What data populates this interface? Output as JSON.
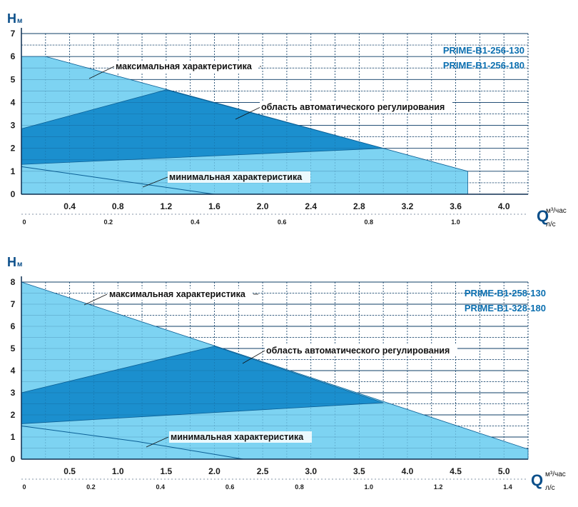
{
  "charts": [
    {
      "y_axis_label": "H",
      "y_axis_unit": "м",
      "x_axis_label": "Q",
      "x_unit_primary": "м³/час",
      "x_unit_secondary": "л/с",
      "models": [
        "PRIME-B1-256-130",
        "PRIME-B1-256-180"
      ],
      "annotations": {
        "max": "максимальная характеристика",
        "auto": "область автоматического регулирования",
        "min": "минимальная характеристика"
      },
      "y_ticks": [
        "0",
        "1",
        "2",
        "3",
        "4",
        "5",
        "6",
        "7"
      ],
      "x_ticks": [
        "0.4",
        "0.8",
        "1.2",
        "1.6",
        "2.0",
        "2.4",
        "2.8",
        "3.2",
        "3.6",
        "4.0"
      ],
      "x_ticks_secondary": [
        "0",
        "0.2",
        "0.4",
        "0.6",
        "0.8",
        "1.0"
      ],
      "colors": {
        "light": "#7dd3f2",
        "dark": "#1b8fce",
        "line": "#0b5f95",
        "grid": "#0d3d66"
      }
    },
    {
      "y_axis_label": "H",
      "y_axis_unit": "м",
      "x_axis_label": "Q",
      "x_unit_primary": "м³/час",
      "x_unit_secondary": "л/с",
      "models": [
        "PRIME-B1-258-130",
        "PRIME-B1-328-180"
      ],
      "annotations": {
        "max": "максимальная характеристика",
        "auto": "область автоматического регулирования",
        "min": "минимальная характеристика"
      },
      "y_ticks": [
        "0",
        "1",
        "2",
        "3",
        "4",
        "5",
        "6",
        "7",
        "8"
      ],
      "x_ticks": [
        "0.5",
        "1.0",
        "1.5",
        "2.0",
        "2.5",
        "3.0",
        "3.5",
        "4.0",
        "4.5",
        "5.0"
      ],
      "x_ticks_secondary": [
        "0",
        "0.2",
        "0.4",
        "0.6",
        "0.8",
        "1.0",
        "1.2",
        "1.4"
      ],
      "colors": {
        "light": "#7dd3f2",
        "dark": "#1b8fce",
        "line": "#0b5f95",
        "grid": "#0d3d66"
      }
    }
  ],
  "chart_data": [
    {
      "type": "area",
      "title": "",
      "xlabel": "Q",
      "ylabel": "H",
      "x_unit": "м³/час",
      "y_unit": "м",
      "xlim": [
        0,
        4.2
      ],
      "ylim": [
        0,
        7
      ],
      "x_secondary_ratio_ls_per_m3h": 0.2778,
      "series": [
        {
          "name": "максимальная характеристика",
          "points": [
            [
              0,
              6.0
            ],
            [
              0.2,
              6.0
            ],
            [
              3.7,
              1.0
            ],
            [
              3.7,
              0
            ]
          ]
        },
        {
          "name": "минимальная характеристика",
          "points": [
            [
              0,
              1.2
            ],
            [
              1.0,
              0.45
            ],
            [
              1.6,
              0
            ]
          ]
        },
        {
          "name": "область автоматического регулирования",
          "points": [
            [
              0,
              2.85
            ],
            [
              1.2,
              4.55
            ],
            [
              3.0,
              2.0
            ],
            [
              0,
              1.3
            ]
          ]
        }
      ],
      "models": [
        "PRIME-B1-256-130",
        "PRIME-B1-256-180"
      ]
    },
    {
      "type": "area",
      "title": "",
      "xlabel": "Q",
      "ylabel": "H",
      "x_unit": "м³/час",
      "y_unit": "м",
      "xlim": [
        0,
        5.25
      ],
      "ylim": [
        0,
        8
      ],
      "x_secondary_ratio_ls_per_m3h": 0.2778,
      "series": [
        {
          "name": "максимальная характеристика",
          "points": [
            [
              0,
              8.0
            ],
            [
              5.25,
              0.45
            ],
            [
              5.25,
              0
            ]
          ]
        },
        {
          "name": "минимальная характеристика",
          "points": [
            [
              0,
              1.5
            ],
            [
              1.2,
              0.8
            ],
            [
              2.3,
              0
            ]
          ]
        },
        {
          "name": "область автоматического регулирования",
          "points": [
            [
              0,
              3.0
            ],
            [
              2.0,
              5.1
            ],
            [
              3.75,
              2.55
            ],
            [
              0,
              1.6
            ]
          ]
        }
      ],
      "models": [
        "PRIME-B1-258-130",
        "PRIME-B1-328-180"
      ]
    }
  ]
}
